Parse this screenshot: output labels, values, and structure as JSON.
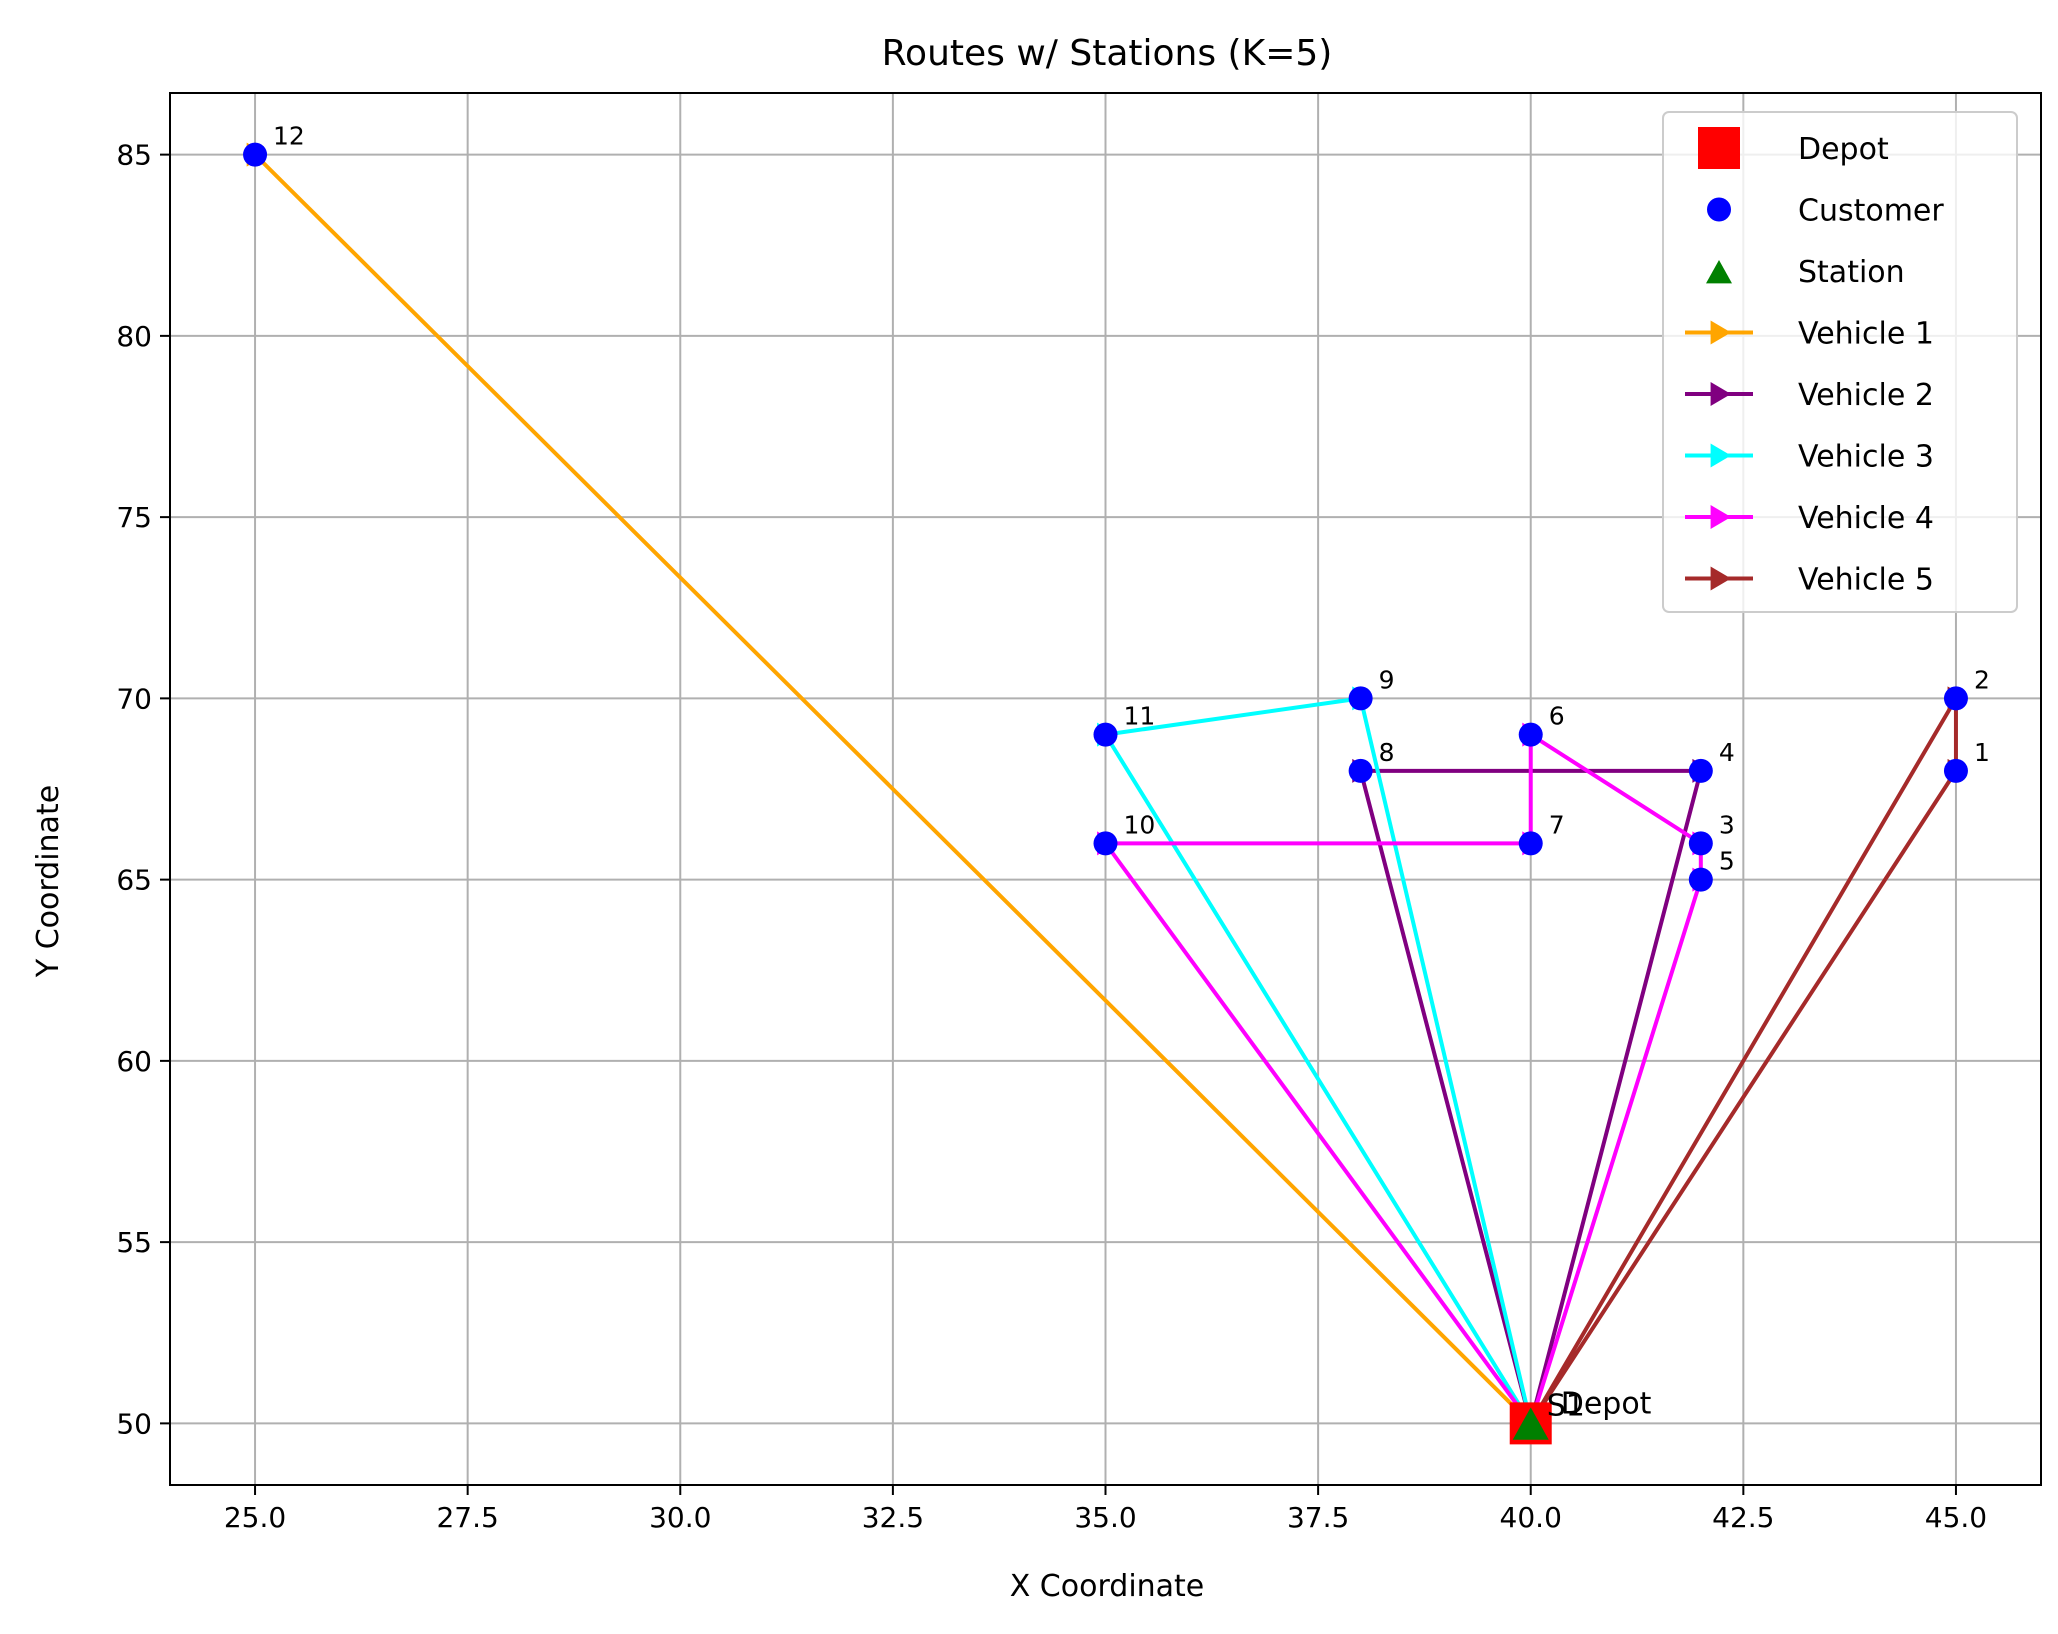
{
  "chart_data": {
    "type": "line",
    "title": "Routes w/ Stations (K=5)",
    "xlabel": "X Coordinate",
    "ylabel": "Y Coordinate",
    "xlim": [
      24.0,
      46.0
    ],
    "ylim": [
      48.3,
      86.7
    ],
    "xticks": [
      25.0,
      27.5,
      30.0,
      32.5,
      35.0,
      37.5,
      40.0,
      42.5,
      45.0
    ],
    "xtick_labels": [
      "25.0",
      "27.5",
      "30.0",
      "32.5",
      "35.0",
      "37.5",
      "40.0",
      "42.5",
      "45.0"
    ],
    "yticks": [
      50,
      55,
      60,
      65,
      70,
      75,
      80,
      85
    ],
    "ytick_labels": [
      "50",
      "55",
      "60",
      "65",
      "70",
      "75",
      "80",
      "85"
    ],
    "grid": true,
    "legend_position": "top-right",
    "depot": {
      "x": 40,
      "y": 50,
      "label": "Depot",
      "color": "#ff0000"
    },
    "station": {
      "x": 40,
      "y": 50,
      "label": "S1",
      "color": "#008000"
    },
    "customers": [
      {
        "id": "1",
        "x": 45,
        "y": 68
      },
      {
        "id": "2",
        "x": 45,
        "y": 70
      },
      {
        "id": "3",
        "x": 42,
        "y": 66
      },
      {
        "id": "4",
        "x": 42,
        "y": 68
      },
      {
        "id": "5",
        "x": 42,
        "y": 65
      },
      {
        "id": "6",
        "x": 40,
        "y": 69
      },
      {
        "id": "7",
        "x": 40,
        "y": 66
      },
      {
        "id": "8",
        "x": 38,
        "y": 68
      },
      {
        "id": "9",
        "x": 38,
        "y": 70
      },
      {
        "id": "10",
        "x": 35,
        "y": 66
      },
      {
        "id": "11",
        "x": 35,
        "y": 69
      },
      {
        "id": "12",
        "x": 25,
        "y": 85
      }
    ],
    "customer_color": "#0000ff",
    "series": [
      {
        "name": "Vehicle 1",
        "color": "#ffa500",
        "route": [
          [
            40,
            50
          ],
          [
            25,
            85
          ],
          [
            40,
            50
          ]
        ]
      },
      {
        "name": "Vehicle 2",
        "color": "#800080",
        "route": [
          [
            40,
            50
          ],
          [
            38,
            68
          ],
          [
            42,
            68
          ],
          [
            40,
            50
          ]
        ]
      },
      {
        "name": "Vehicle 3",
        "color": "#00ffff",
        "route": [
          [
            40,
            50
          ],
          [
            38,
            70
          ],
          [
            35,
            69
          ],
          [
            40,
            50
          ]
        ]
      },
      {
        "name": "Vehicle 4",
        "color": "#ff00ff",
        "route": [
          [
            40,
            50
          ],
          [
            42,
            65
          ],
          [
            42,
            66
          ],
          [
            40,
            69
          ],
          [
            40,
            66
          ],
          [
            35,
            66
          ],
          [
            40,
            50
          ]
        ]
      },
      {
        "name": "Vehicle 5",
        "color": "#a52a2a",
        "route": [
          [
            40,
            50
          ],
          [
            45,
            70
          ],
          [
            45,
            68
          ],
          [
            40,
            50
          ]
        ]
      }
    ],
    "legend": [
      {
        "label": "Depot",
        "marker": "square",
        "color": "#ff0000"
      },
      {
        "label": "Customer",
        "marker": "circle",
        "color": "#0000ff"
      },
      {
        "label": "Station",
        "marker": "triangle",
        "color": "#008000"
      },
      {
        "label": "Vehicle 1",
        "marker": "line-arrow",
        "color": "#ffa500"
      },
      {
        "label": "Vehicle 2",
        "marker": "line-arrow",
        "color": "#800080"
      },
      {
        "label": "Vehicle 3",
        "marker": "line-arrow",
        "color": "#00ffff"
      },
      {
        "label": "Vehicle 4",
        "marker": "line-arrow",
        "color": "#ff00ff"
      },
      {
        "label": "Vehicle 5",
        "marker": "line-arrow",
        "color": "#a52a2a"
      }
    ]
  }
}
